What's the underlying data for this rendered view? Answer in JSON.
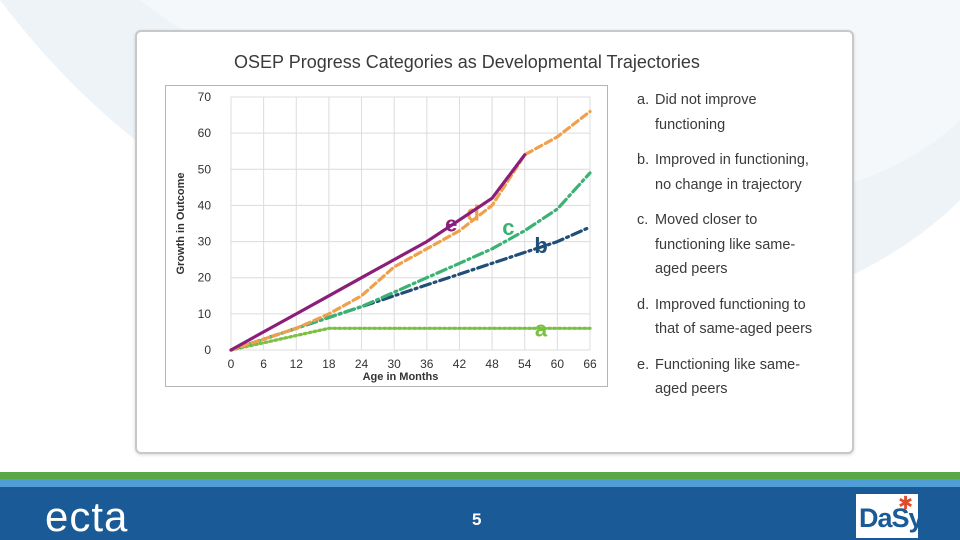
{
  "slide": {
    "page_number": "5",
    "logos": {
      "left": "ecta",
      "right": "DaSy"
    }
  },
  "chart_data": {
    "type": "line",
    "title": "OSEP Progress Categories as Developmental Trajectories",
    "xlabel": "Age in Months",
    "ylabel": "Growth in Outcome",
    "xlim": [
      0,
      66
    ],
    "ylim": [
      0,
      70
    ],
    "xticks": [
      0,
      6,
      12,
      18,
      24,
      30,
      36,
      42,
      48,
      54,
      60,
      66
    ],
    "yticks": [
      0,
      10,
      20,
      30,
      40,
      50,
      60,
      70
    ],
    "grid": true,
    "series": [
      {
        "name": "a",
        "color": "#7ac143",
        "dash": "2 3",
        "label_pos": [
          57,
          6
        ],
        "points": [
          [
            0,
            0
          ],
          [
            6,
            2
          ],
          [
            12,
            4
          ],
          [
            18,
            6
          ],
          [
            24,
            6
          ],
          [
            30,
            6
          ],
          [
            36,
            6
          ],
          [
            42,
            6
          ],
          [
            48,
            6
          ],
          [
            54,
            6
          ],
          [
            60,
            6
          ],
          [
            66,
            6
          ]
        ]
      },
      {
        "name": "b",
        "color": "#1f4e79",
        "dash": "10 4 2 4",
        "label_pos": [
          57,
          29
        ],
        "points": [
          [
            0,
            0
          ],
          [
            6,
            3
          ],
          [
            12,
            6
          ],
          [
            18,
            9
          ],
          [
            24,
            12
          ],
          [
            30,
            15
          ],
          [
            36,
            18
          ],
          [
            42,
            21
          ],
          [
            48,
            24
          ],
          [
            54,
            27
          ],
          [
            60,
            30
          ],
          [
            66,
            34
          ]
        ]
      },
      {
        "name": "c",
        "color": "#3bb273",
        "dash": "10 4 2 4",
        "label_pos": [
          51,
          34
        ],
        "points": [
          [
            0,
            0
          ],
          [
            6,
            3
          ],
          [
            12,
            6
          ],
          [
            18,
            9
          ],
          [
            24,
            12
          ],
          [
            30,
            16
          ],
          [
            36,
            20
          ],
          [
            42,
            24
          ],
          [
            48,
            28
          ],
          [
            54,
            33
          ],
          [
            60,
            39
          ],
          [
            66,
            49
          ]
        ]
      },
      {
        "name": "d",
        "color": "#f0a04b",
        "dash": "7 4",
        "label_pos": [
          44.5,
          38
        ],
        "points": [
          [
            0,
            0
          ],
          [
            6,
            3
          ],
          [
            12,
            6
          ],
          [
            18,
            10
          ],
          [
            24,
            15
          ],
          [
            30,
            23
          ],
          [
            36,
            28
          ],
          [
            42,
            33
          ],
          [
            48,
            40
          ],
          [
            54,
            54
          ],
          [
            60,
            59
          ],
          [
            66,
            66
          ]
        ]
      },
      {
        "name": "e",
        "color": "#8b1e7a",
        "dash": "",
        "label_pos": [
          40.5,
          35
        ],
        "points": [
          [
            0,
            0
          ],
          [
            6,
            5
          ],
          [
            12,
            10
          ],
          [
            18,
            15
          ],
          [
            24,
            20
          ],
          [
            30,
            25
          ],
          [
            36,
            30
          ],
          [
            42,
            36
          ],
          [
            48,
            42
          ],
          [
            54,
            54
          ]
        ]
      }
    ]
  },
  "legend": [
    {
      "letter": "a.",
      "text": "Did not improve functioning"
    },
    {
      "letter": "b.",
      "text": "Improved in functioning, no change in trajectory"
    },
    {
      "letter": "c.",
      "text": "Moved closer to functioning like same-aged peers"
    },
    {
      "letter": "d.",
      "text": "Improved functioning to that of same-aged peers"
    },
    {
      "letter": "e.",
      "text": "Functioning like same-aged peers"
    }
  ]
}
